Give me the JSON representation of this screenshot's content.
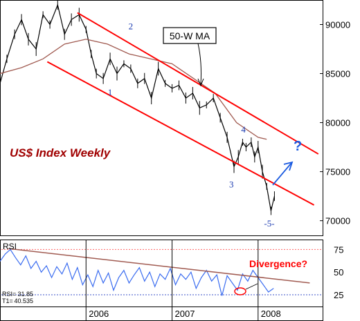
{
  "colors": {
    "price": "#000000",
    "ma": "#a05a50",
    "channel": "#ff0000",
    "wave_label": "#1a3ab0",
    "title": "#a00000",
    "rsi": "#3a6cf0",
    "rsi_trend": "#a05a50",
    "rsi_ref": "#ff6666",
    "rsi_low_ref": "#3a50c8",
    "divergence": "#ff0000",
    "arrow": "#1a5ae0"
  },
  "chart_data": [
    {
      "type": "line",
      "title": "US$ Index Weekly",
      "ylim": [
        68500,
        92500
      ],
      "y_ticks": [
        70000,
        75000,
        80000,
        85000,
        90000
      ],
      "y_tick_labels": [
        "70000",
        "75000",
        "80000",
        "85000",
        "90000"
      ],
      "x_tick_labels": [
        "2006",
        "2007",
        "2008"
      ],
      "x_tick_years": [
        2006,
        2007,
        2008
      ],
      "xlim_year": [
        2005.0,
        2008.75
      ],
      "series": [
        {
          "key": "price",
          "x_year": [
            2005.0,
            2005.08,
            2005.17,
            2005.25,
            2005.33,
            2005.42,
            2005.5,
            2005.58,
            2005.67,
            2005.75,
            2005.83,
            2005.92,
            2006.0,
            2006.06,
            2006.12,
            2006.2,
            2006.28,
            2006.36,
            2006.44,
            2006.52,
            2006.6,
            2006.68,
            2006.76,
            2006.84,
            2006.92,
            2007.0,
            2007.08,
            2007.16,
            2007.24,
            2007.32,
            2007.4,
            2007.48,
            2007.56,
            2007.64,
            2007.72,
            2007.77,
            2007.82,
            2007.86,
            2007.92,
            2007.96,
            2008.0,
            2008.05,
            2008.1,
            2008.15,
            2008.19
          ],
          "y": [
            84000,
            86500,
            89000,
            90500,
            88500,
            87500,
            91000,
            90000,
            92000,
            89000,
            90500,
            91000,
            89500,
            87000,
            85000,
            84500,
            86500,
            85000,
            86000,
            85500,
            84000,
            84500,
            82500,
            85500,
            84000,
            83500,
            83800,
            82500,
            83000,
            81500,
            81800,
            82500,
            80500,
            78500,
            75500,
            76500,
            78000,
            77500,
            78000,
            76500,
            77500,
            75000,
            73500,
            71000,
            72500
          ]
        },
        {
          "name": "50-W MA",
          "key": "ma",
          "x_year": [
            2005.0,
            2005.25,
            2005.5,
            2005.75,
            2006.0,
            2006.25,
            2006.5,
            2006.75,
            2007.0,
            2007.25,
            2007.5,
            2007.75,
            2008.0,
            2008.1
          ],
          "y": [
            85000,
            85600,
            86500,
            88000,
            88500,
            88000,
            87000,
            86500,
            86000,
            84500,
            83000,
            80000,
            78500,
            78300
          ]
        }
      ],
      "channel_upper": {
        "x_year": [
          2005.9,
          2008.7
        ],
        "y": [
          91200,
          76800
        ]
      },
      "channel_lower": {
        "x_year": [
          2005.55,
          2008.65
        ],
        "y": [
          86200,
          71600
        ]
      },
      "annotations": {
        "ma_label": "50-W MA",
        "wave_labels": [
          {
            "text": "1",
            "x_year": 2006.28,
            "y": 82800
          },
          {
            "text": "2",
            "x_year": 2006.52,
            "y": 89500
          },
          {
            "text": "3",
            "x_year": 2007.69,
            "y": 73400
          },
          {
            "text": "4",
            "x_year": 2007.83,
            "y": 79000
          },
          {
            "text": "-5-",
            "x_year": 2008.13,
            "y": 69400
          }
        ],
        "forecast_mark": "?"
      }
    },
    {
      "type": "line",
      "title": "RSI",
      "ylim": [
        12,
        86
      ],
      "y_ticks": [
        75,
        50,
        25
      ],
      "y_tick_labels": [
        "75",
        "50",
        "25"
      ],
      "ref_levels": [
        75,
        25
      ],
      "readout": {
        "label0": "RSI=",
        "value0": "31.85",
        "label1": "T1=",
        "value1": "40.535"
      },
      "series": [
        {
          "key": "rsi",
          "x_year": [
            2005.0,
            2005.06,
            2005.12,
            2005.18,
            2005.24,
            2005.3,
            2005.36,
            2005.42,
            2005.48,
            2005.54,
            2005.6,
            2005.66,
            2005.72,
            2005.78,
            2005.84,
            2005.9,
            2005.96,
            2006.02,
            2006.08,
            2006.14,
            2006.2,
            2006.26,
            2006.32,
            2006.38,
            2006.44,
            2006.5,
            2006.56,
            2006.62,
            2006.68,
            2006.74,
            2006.8,
            2006.86,
            2006.92,
            2006.98,
            2007.04,
            2007.1,
            2007.16,
            2007.22,
            2007.28,
            2007.34,
            2007.4,
            2007.46,
            2007.52,
            2007.58,
            2007.64,
            2007.7,
            2007.76,
            2007.82,
            2007.88,
            2007.94,
            2008.0,
            2008.06,
            2008.12,
            2008.18
          ],
          "y": [
            62,
            70,
            75,
            66,
            58,
            68,
            54,
            62,
            50,
            57,
            44,
            56,
            48,
            60,
            42,
            55,
            36,
            47,
            34,
            52,
            38,
            49,
            30,
            44,
            52,
            38,
            47,
            55,
            40,
            50,
            34,
            48,
            42,
            54,
            36,
            48,
            42,
            50,
            32,
            44,
            52,
            40,
            47,
            24,
            46,
            38,
            30,
            48,
            40,
            52,
            44,
            36,
            28,
            32
          ]
        }
      ],
      "trendline": {
        "x_year": [
          2005.1,
          2008.6
        ],
        "y": [
          76,
          38
        ]
      },
      "annotations": {
        "divergence_label": "Divergence?"
      }
    }
  ]
}
